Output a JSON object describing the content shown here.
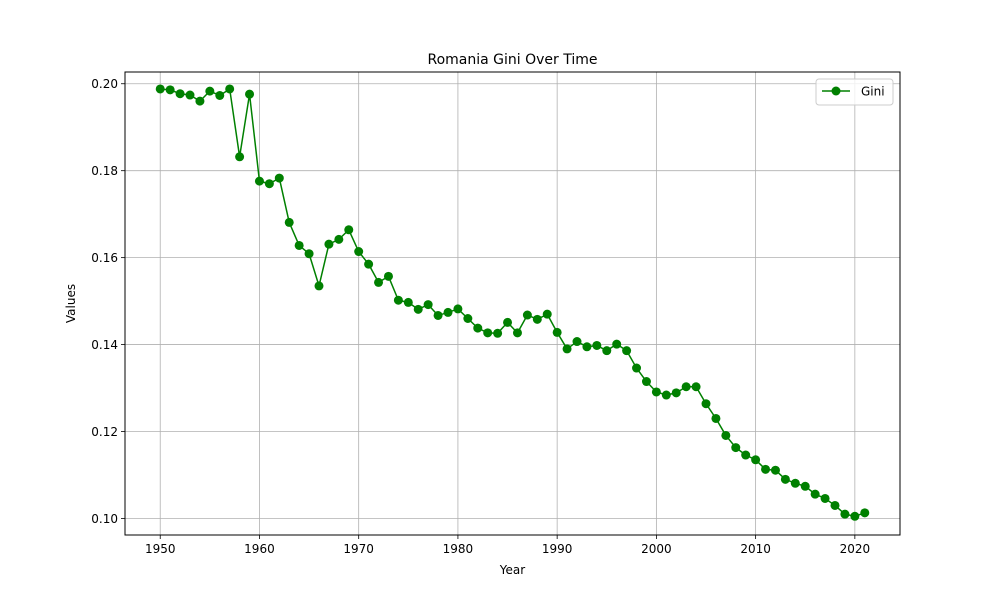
{
  "chart_data": {
    "type": "line",
    "title": "Romania Gini Over Time",
    "xlabel": "Year",
    "ylabel": "Values",
    "xlim": [
      1946.45,
      2024.55
    ],
    "ylim": [
      0.0962,
      0.2027
    ],
    "x_ticks": [
      1950,
      1960,
      1970,
      1980,
      1990,
      2000,
      2010,
      2020
    ],
    "x_tick_labels": [
      "1950",
      "1960",
      "1970",
      "1980",
      "1990",
      "2000",
      "2010",
      "2020"
    ],
    "y_ticks": [
      0.1,
      0.12,
      0.14,
      0.16,
      0.18,
      0.2
    ],
    "y_tick_labels": [
      "0.10",
      "0.12",
      "0.14",
      "0.16",
      "0.18",
      "0.20"
    ],
    "grid": true,
    "legend_position": "top-right",
    "series": [
      {
        "name": "Gini",
        "color": "#008000",
        "marker": "circle",
        "x": [
          1950,
          1951,
          1952,
          1953,
          1954,
          1955,
          1956,
          1957,
          1958,
          1959,
          1960,
          1961,
          1962,
          1963,
          1964,
          1965,
          1966,
          1967,
          1968,
          1969,
          1970,
          1971,
          1972,
          1973,
          1974,
          1975,
          1976,
          1977,
          1978,
          1979,
          1980,
          1981,
          1982,
          1983,
          1984,
          1985,
          1986,
          1987,
          1988,
          1989,
          1990,
          1991,
          1992,
          1993,
          1994,
          1995,
          1996,
          1997,
          1998,
          1999,
          2000,
          2001,
          2002,
          2003,
          2004,
          2005,
          2006,
          2007,
          2008,
          2009,
          2010,
          2011,
          2012,
          2013,
          2014,
          2015,
          2016,
          2017,
          2018,
          2019,
          2020,
          2021
        ],
        "values": [
          0.1988,
          0.1986,
          0.1977,
          0.1974,
          0.196,
          0.1983,
          0.1973,
          0.1988,
          0.1832,
          0.1976,
          0.1776,
          0.177,
          0.1783,
          0.1681,
          0.1628,
          0.1609,
          0.1535,
          0.1631,
          0.1642,
          0.1664,
          0.1614,
          0.1585,
          0.1543,
          0.1557,
          0.1502,
          0.1497,
          0.1481,
          0.1492,
          0.1467,
          0.1474,
          0.1482,
          0.146,
          0.1438,
          0.1427,
          0.1426,
          0.1451,
          0.1427,
          0.1468,
          0.1458,
          0.147,
          0.1428,
          0.139,
          0.1407,
          0.1395,
          0.1398,
          0.1386,
          0.1401,
          0.1386,
          0.1346,
          0.1315,
          0.1291,
          0.1284,
          0.1289,
          0.1303,
          0.1303,
          0.1264,
          0.123,
          0.1191,
          0.1163,
          0.1146,
          0.1135,
          0.1113,
          0.1111,
          0.109,
          0.1081,
          0.1074,
          0.1056,
          0.1046,
          0.103,
          0.101,
          0.1005,
          0.1013
        ]
      }
    ]
  }
}
